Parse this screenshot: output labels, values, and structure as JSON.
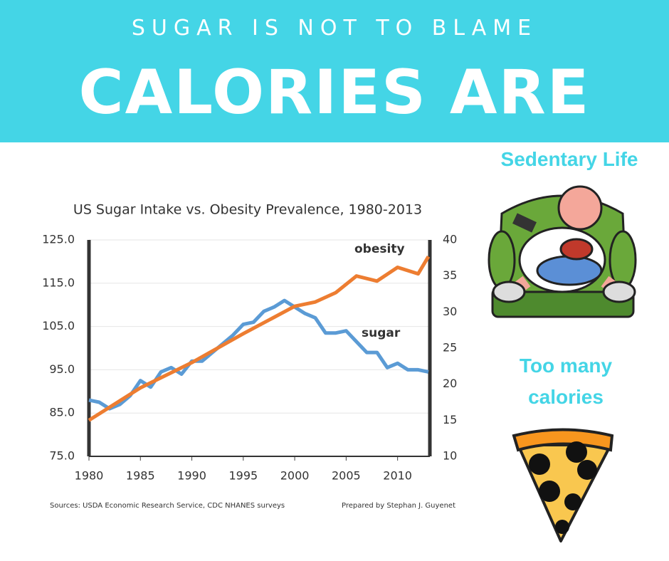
{
  "header": {
    "kicker": "SUGAR IS NOT TO BLAME",
    "headline": "CALORIES ARE"
  },
  "side": {
    "top_caption": "Sedentary Life",
    "bottom_caption": "Too many calories"
  },
  "chart_data": {
    "type": "line",
    "title": "US Sugar Intake vs. Obesity Prevalence, 1980-2013",
    "source": "Sources: USDA Economic Research Service, CDC NHANES surveys",
    "credit": "Prepared by Stephan J. Guyenet",
    "xlim": [
      1980,
      2013
    ],
    "xticks": [
      1980,
      1985,
      1990,
      1995,
      2000,
      2005,
      2010
    ],
    "ylim": [
      75,
      125
    ],
    "yticks": [
      {
        "value": 75,
        "label": "75.0"
      },
      {
        "value": 85,
        "label": "85.0"
      },
      {
        "value": 95,
        "label": "95.0"
      },
      {
        "value": 105,
        "label": "105.0"
      },
      {
        "value": 115,
        "label": "115.0"
      },
      {
        "value": 125,
        "label": "125.0"
      }
    ],
    "y2lim": [
      10,
      40
    ],
    "y2ticks": [
      10,
      15,
      20,
      25,
      30,
      35,
      40
    ],
    "grid": true,
    "series": [
      {
        "name": "sugar",
        "color": "#5b9bd5",
        "x": [
          1980,
          1981,
          1982,
          1983,
          1984,
          1985,
          1986,
          1987,
          1988,
          1989,
          1990,
          1991,
          1992,
          1993,
          1994,
          1995,
          1996,
          1997,
          1998,
          1999,
          2000,
          2001,
          2002,
          2003,
          2004,
          2005,
          2006,
          2007,
          2008,
          2009,
          2010,
          2011,
          2012,
          2013
        ],
        "values": [
          88,
          87.5,
          86,
          87,
          89,
          92.5,
          91,
          94.5,
          95.5,
          94,
          97,
          97,
          99,
          101,
          103,
          105.5,
          106,
          108.5,
          109.5,
          111,
          109.5,
          108,
          107,
          103.5,
          103.5,
          104,
          101.5,
          99,
          99,
          95.5,
          96.5,
          95,
          95,
          94.5
        ]
      },
      {
        "name": "obesity",
        "color": "#ed7d31",
        "axis": "y2",
        "x": [
          1980,
          1985,
          1990,
          1995,
          2000,
          2002,
          2004,
          2006,
          2008,
          2010,
          2012,
          2013
        ],
        "values": [
          15,
          19.5,
          23,
          27,
          30.8,
          31.4,
          32.7,
          35,
          34.3,
          36.2,
          35.3,
          37.7
        ]
      }
    ]
  }
}
